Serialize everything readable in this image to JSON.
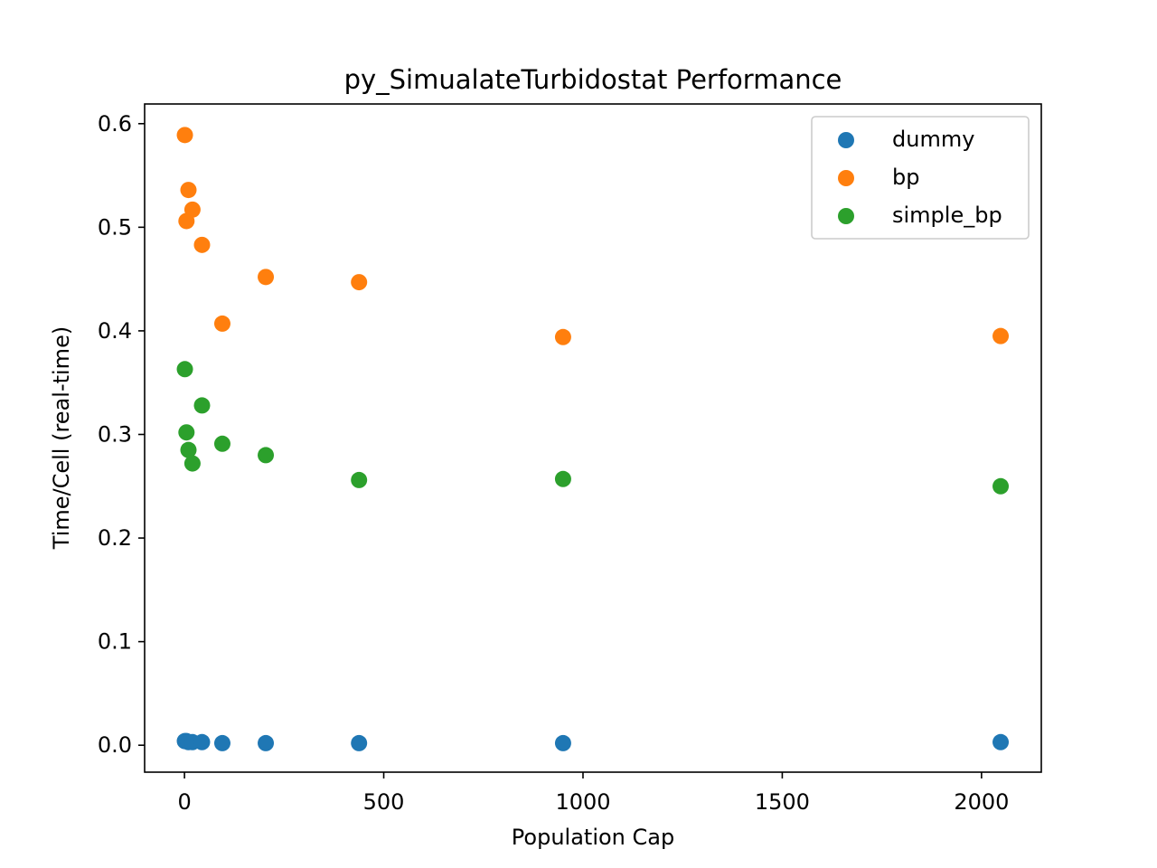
{
  "chart_data": {
    "type": "scatter",
    "title": "py_SimualateTurbidostat Performance",
    "xlabel": "Population Cap",
    "ylabel": "Time/Cell (real-time)",
    "xlim": [
      -100,
      2150
    ],
    "ylim": [
      -0.026,
      0.619
    ],
    "xticks": [
      0,
      500,
      1000,
      1500,
      2000
    ],
    "xtick_labels": [
      "0",
      "500",
      "1000",
      "1500",
      "2000"
    ],
    "yticks": [
      0.0,
      0.1,
      0.2,
      0.3,
      0.4,
      0.5,
      0.6
    ],
    "ytick_labels": [
      "0.0",
      "0.1",
      "0.2",
      "0.3",
      "0.4",
      "0.5",
      "0.6"
    ],
    "grid": false,
    "legend_position": "top-right",
    "series": [
      {
        "name": "dummy",
        "color": "#1f77b4",
        "points": [
          [
            1,
            0.004
          ],
          [
            5,
            0.004
          ],
          [
            10,
            0.003
          ],
          [
            20,
            0.003
          ],
          [
            44,
            0.003
          ],
          [
            95,
            0.002
          ],
          [
            204,
            0.002
          ],
          [
            438,
            0.002
          ],
          [
            950,
            0.002
          ],
          [
            2048,
            0.003
          ]
        ]
      },
      {
        "name": "bp",
        "color": "#ff7f0e",
        "points": [
          [
            1,
            0.589
          ],
          [
            5,
            0.506
          ],
          [
            10,
            0.536
          ],
          [
            20,
            0.517
          ],
          [
            44,
            0.483
          ],
          [
            95,
            0.407
          ],
          [
            204,
            0.452
          ],
          [
            438,
            0.447
          ],
          [
            950,
            0.394
          ],
          [
            2048,
            0.395
          ]
        ]
      },
      {
        "name": "simple_bp",
        "color": "#2ca02c",
        "points": [
          [
            1,
            0.363
          ],
          [
            5,
            0.302
          ],
          [
            10,
            0.285
          ],
          [
            20,
            0.272
          ],
          [
            44,
            0.328
          ],
          [
            95,
            0.291
          ],
          [
            204,
            0.28
          ],
          [
            438,
            0.256
          ],
          [
            950,
            0.257
          ],
          [
            2048,
            0.25
          ]
        ]
      }
    ]
  }
}
